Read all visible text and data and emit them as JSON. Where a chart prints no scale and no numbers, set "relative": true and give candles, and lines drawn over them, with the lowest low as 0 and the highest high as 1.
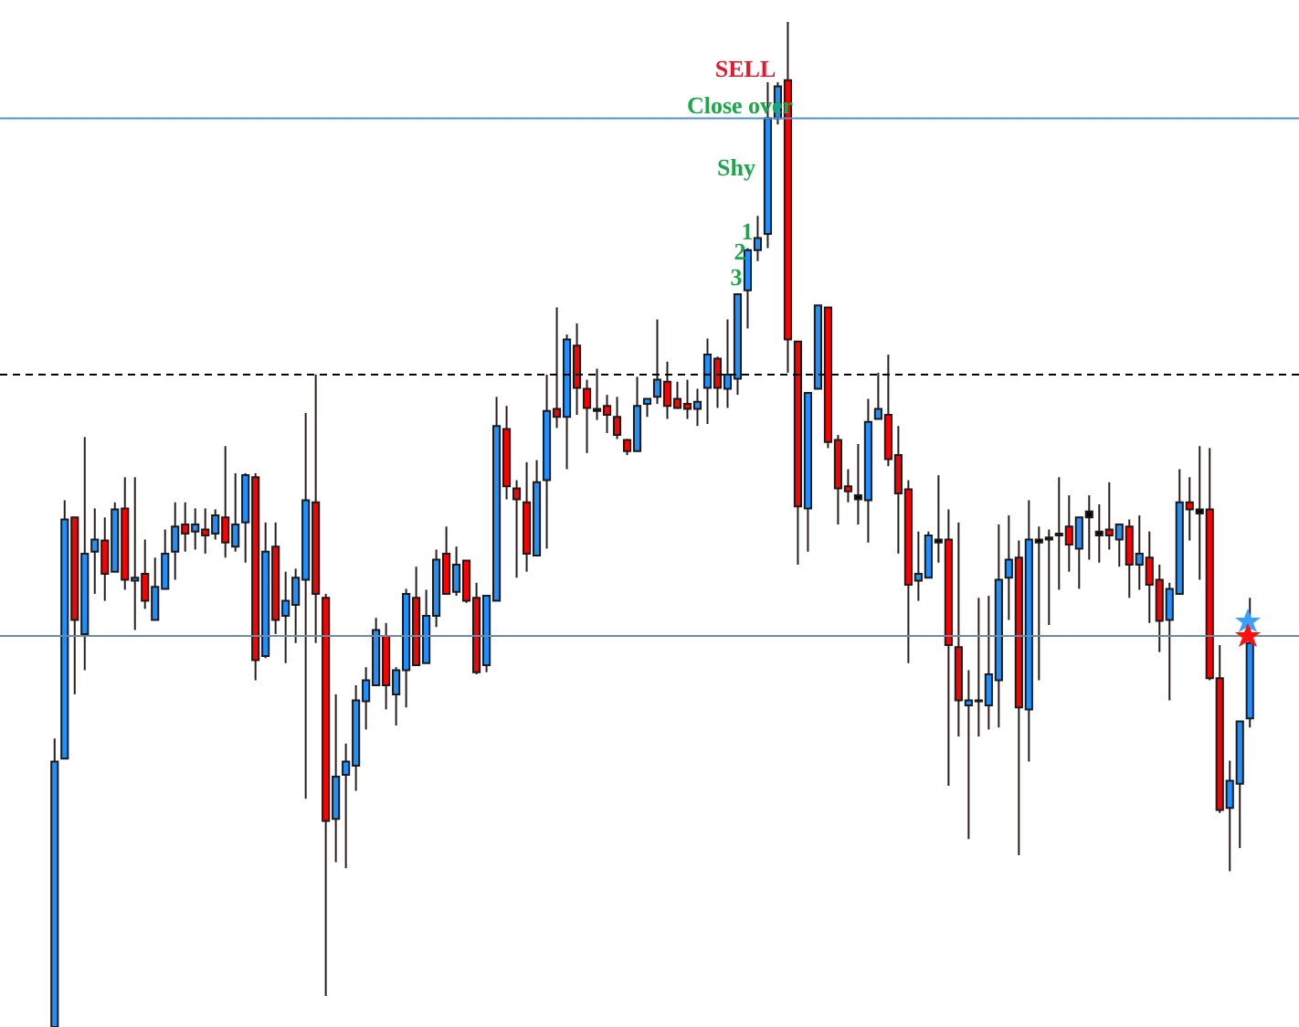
{
  "chart_data": {
    "type": "candlestick",
    "relative": true,
    "categories": [
      null,
      null,
      null,
      null,
      null,
      null,
      null,
      null,
      null,
      null,
      null,
      null,
      null,
      null,
      null,
      null,
      null,
      null,
      null,
      null,
      null,
      null,
      null,
      null,
      null,
      null,
      null,
      null,
      null,
      null,
      null,
      null,
      null,
      null,
      null,
      null,
      null,
      null,
      null,
      null,
      null,
      null,
      null,
      null,
      null,
      null,
      null,
      null,
      null,
      null,
      null,
      null,
      null,
      null,
      null,
      null,
      null,
      null,
      null,
      null,
      null,
      null,
      null,
      null,
      null,
      null,
      null,
      null,
      null,
      null,
      null,
      null,
      null,
      null,
      null,
      null,
      null,
      null,
      null,
      null,
      null,
      null,
      null,
      null,
      null,
      null,
      null,
      null,
      null,
      null,
      null,
      null,
      null,
      null,
      null,
      null,
      null,
      null,
      null,
      null,
      null,
      null,
      null,
      null,
      null,
      null,
      null,
      null,
      null,
      null,
      null,
      null,
      null,
      null,
      null,
      null,
      null,
      null,
      null,
      null
    ],
    "ohlc": [
      [
        0,
        0.287,
        0,
        0.264
      ],
      [
        0.267,
        0.524,
        0.267,
        0.505
      ],
      [
        0.507,
        0.507,
        0.331,
        0.405
      ],
      [
        0.391,
        0.587,
        0.355,
        0.471
      ],
      [
        0.473,
        0.516,
        0.431,
        0.485
      ],
      [
        0.484,
        0.507,
        0.424,
        0.451
      ],
      [
        0.453,
        0.522,
        0.453,
        0.515
      ],
      [
        0.516,
        0.547,
        0.435,
        0.445
      ],
      [
        0.444,
        0.547,
        0.395,
        0.447
      ],
      [
        0.451,
        0.485,
        0.416,
        0.424
      ],
      [
        0.405,
        0.467,
        0.405,
        0.438
      ],
      [
        0.436,
        0.495,
        0.436,
        0.471
      ],
      [
        0.473,
        0.522,
        0.445,
        0.498
      ],
      [
        0.5,
        0.522,
        0.473,
        0.491
      ],
      [
        0.493,
        0.516,
        0.475,
        0.5
      ],
      [
        0.495,
        0.516,
        0.471,
        0.489
      ],
      [
        0.491,
        0.515,
        0.485,
        0.509
      ],
      [
        0.507,
        0.578,
        0.467,
        0.482
      ],
      [
        0.478,
        0.551,
        0.473,
        0.5
      ],
      [
        0.502,
        0.551,
        0.462,
        0.549
      ],
      [
        0.547,
        0.551,
        0.345,
        0.365
      ],
      [
        0.369,
        0.502,
        0.367,
        0.473
      ],
      [
        0.478,
        0.502,
        0.391,
        0.405
      ],
      [
        0.409,
        0.453,
        0.362,
        0.424
      ],
      [
        0.42,
        0.456,
        0.382,
        0.447
      ],
      [
        0.445,
        0.611,
        0.227,
        0.524
      ],
      [
        0.522,
        0.649,
        0.382,
        0.431
      ],
      [
        0.427,
        0.431,
        0.031,
        0.205
      ],
      [
        0.207,
        0.331,
        0.164,
        0.249
      ],
      [
        0.251,
        0.282,
        0.158,
        0.264
      ],
      [
        0.26,
        0.34,
        0.235,
        0.325
      ],
      [
        0.324,
        0.358,
        0.296,
        0.345
      ],
      [
        0.34,
        0.407,
        0.34,
        0.395
      ],
      [
        0.389,
        0.402,
        0.316,
        0.34
      ],
      [
        0.331,
        0.358,
        0.3,
        0.355
      ],
      [
        0.355,
        0.436,
        0.318,
        0.431
      ],
      [
        0.427,
        0.458,
        0.36,
        0.36
      ],
      [
        0.362,
        0.435,
        0.362,
        0.409
      ],
      [
        0.409,
        0.475,
        0.398,
        0.465
      ],
      [
        0.471,
        0.498,
        0.431,
        0.431
      ],
      [
        0.433,
        0.478,
        0.429,
        0.46
      ],
      [
        0.464,
        0.464,
        0.422,
        0.424
      ],
      [
        0.427,
        0.442,
        0.351,
        0.353
      ],
      [
        0.36,
        0.429,
        0.353,
        0.429
      ],
      [
        0.424,
        0.627,
        0.424,
        0.598
      ],
      [
        0.595,
        0.618,
        0.525,
        0.538
      ],
      [
        0.536,
        0.544,
        0.447,
        0.525
      ],
      [
        0.522,
        0.562,
        0.453,
        0.471
      ],
      [
        0.469,
        0.564,
        0.469,
        0.542
      ],
      [
        0.544,
        0.649,
        0.476,
        0.613
      ],
      [
        0.615,
        0.716,
        0.596,
        0.607
      ],
      [
        0.607,
        0.689,
        0.555,
        0.684
      ],
      [
        0.678,
        0.7,
        0.609,
        0.636
      ],
      [
        0.635,
        0.644,
        0.571,
        0.616
      ],
      [
        0.615,
        0.655,
        0.604,
        0.613
      ],
      [
        0.618,
        0.629,
        0.591,
        0.609
      ],
      [
        0.607,
        0.627,
        0.585,
        0.589
      ],
      [
        0.584,
        0.585,
        0.569,
        0.573
      ],
      [
        0.573,
        0.647,
        0.573,
        0.618
      ],
      [
        0.62,
        0.625,
        0.607,
        0.625
      ],
      [
        0.627,
        0.704,
        0.62,
        0.644
      ],
      [
        0.642,
        0.662,
        0.605,
        0.618
      ],
      [
        0.625,
        0.642,
        0.615,
        0.616
      ],
      [
        0.62,
        0.644,
        0.605,
        0.615
      ],
      [
        0.615,
        0.635,
        0.598,
        0.622
      ],
      [
        0.636,
        0.685,
        0.6,
        0.669
      ],
      [
        0.665,
        0.667,
        0.616,
        0.636
      ],
      [
        0.635,
        0.704,
        0.616,
        0.649
      ],
      [
        0.645,
        0.729,
        0.629,
        0.729
      ],
      [
        0.733,
        0.775,
        0.695,
        0.773
      ],
      [
        0.773,
        0.807,
        0.762,
        0.785
      ],
      [
        0.789,
        0.94,
        0.775,
        0.904
      ],
      [
        0.904,
        0.94,
        0.898,
        0.936
      ],
      [
        0.942,
        1,
        0.651,
        0.684
      ],
      [
        0.682,
        0.682,
        0.46,
        0.518
      ],
      [
        0.516,
        0.631,
        0.473,
        0.631
      ],
      [
        0.635,
        0.718,
        0.635,
        0.718
      ],
      [
        0.716,
        0.716,
        0.576,
        0.582
      ],
      [
        0.584,
        0.589,
        0.5,
        0.536
      ],
      [
        0.538,
        0.555,
        0.522,
        0.533
      ],
      [
        0.529,
        0.58,
        0.5,
        0.525
      ],
      [
        0.524,
        0.625,
        0.482,
        0.602
      ],
      [
        0.605,
        0.651,
        0.605,
        0.615
      ],
      [
        0.609,
        0.669,
        0.558,
        0.565
      ],
      [
        0.569,
        0.598,
        0.471,
        0.531
      ],
      [
        0.535,
        0.544,
        0.362,
        0.44
      ],
      [
        0.444,
        0.493,
        0.424,
        0.451
      ],
      [
        0.447,
        0.493,
        0.447,
        0.489
      ],
      [
        0.485,
        0.549,
        0.462,
        0.482
      ],
      [
        0.485,
        0.515,
        0.24,
        0.38
      ],
      [
        0.378,
        0.502,
        0.289,
        0.325
      ],
      [
        0.32,
        0.355,
        0.187,
        0.325
      ],
      [
        0.325,
        0.427,
        0.289,
        0.324
      ],
      [
        0.32,
        0.429,
        0.296,
        0.351
      ],
      [
        0.345,
        0.5,
        0.298,
        0.445
      ],
      [
        0.447,
        0.509,
        0.405,
        0.465
      ],
      [
        0.467,
        0.484,
        0.171,
        0.318
      ],
      [
        0.316,
        0.524,
        0.264,
        0.485
      ],
      [
        0.485,
        0.498,
        0.345,
        0.482
      ],
      [
        0.487,
        0.495,
        0.4,
        0.485
      ],
      [
        0.491,
        0.547,
        0.435,
        0.489
      ],
      [
        0.498,
        0.529,
        0.453,
        0.48
      ],
      [
        0.476,
        0.507,
        0.436,
        0.507
      ],
      [
        0.513,
        0.529,
        0.465,
        0.507
      ],
      [
        0.493,
        0.52,
        0.462,
        0.489
      ],
      [
        0.495,
        0.542,
        0.475,
        0.489
      ],
      [
        0.485,
        0.5,
        0.458,
        0.5
      ],
      [
        0.498,
        0.505,
        0.427,
        0.46
      ],
      [
        0.46,
        0.509,
        0.435,
        0.471
      ],
      [
        0.467,
        0.493,
        0.402,
        0.44
      ],
      [
        0.445,
        0.46,
        0.373,
        0.404
      ],
      [
        0.405,
        0.442,
        0.325,
        0.436
      ],
      [
        0.431,
        0.555,
        0.431,
        0.522
      ],
      [
        0.522,
        0.547,
        0.484,
        0.515
      ],
      [
        0.515,
        0.578,
        0.445,
        0.511
      ],
      [
        0.515,
        0.576,
        0.345,
        0.347
      ],
      [
        0.347,
        0.38,
        0.213,
        0.216
      ],
      [
        0.218,
        0.265,
        0.155,
        0.245
      ],
      [
        0.242,
        0.304,
        0.178,
        0.304
      ],
      [
        0.307,
        0.427,
        0.298,
        0.382
      ]
    ],
    "colors": [
      "#1e90ff",
      "#1e90ff",
      "#ff0000",
      "#1e90ff",
      "#1e90ff",
      "#ff0000",
      "#1e90ff",
      "#ff0000",
      "#1e90ff",
      "#ff0000",
      "#1e90ff",
      "#1e90ff",
      "#1e90ff",
      "#ff0000",
      "#1e90ff",
      "#ff0000",
      "#1e90ff",
      "#ff0000",
      "#1e90ff",
      "#1e90ff",
      "#ff0000",
      "#1e90ff",
      "#ff0000",
      "#1e90ff",
      "#1e90ff",
      "#1e90ff",
      "#ff0000",
      "#ff0000",
      "#1e90ff",
      "#1e90ff",
      "#1e90ff",
      "#1e90ff",
      "#1e90ff",
      "#ff0000",
      "#1e90ff",
      "#1e90ff",
      "#ff0000",
      "#1e90ff",
      "#1e90ff",
      "#ff0000",
      "#1e90ff",
      "#ff0000",
      "#ff0000",
      "#1e90ff",
      "#1e90ff",
      "#ff0000",
      "#ff0000",
      "#ff0000",
      "#1e90ff",
      "#1e90ff",
      "#ff0000",
      "#1e90ff",
      "#ff0000",
      "#ff0000",
      "#000000",
      "#ff0000",
      "#ff0000",
      "#ff0000",
      "#1e90ff",
      "#1e90ff",
      "#1e90ff",
      "#ff0000",
      "#ff0000",
      "#ff0000",
      "#1e90ff",
      "#1e90ff",
      "#ff0000",
      "#1e90ff",
      "#1e90ff",
      "#1e90ff",
      "#1e90ff",
      "#1e90ff",
      "#1e90ff",
      "#ff0000",
      "#ff0000",
      "#1e90ff",
      "#1e90ff",
      "#ff0000",
      "#ff0000",
      "#ff0000",
      "#000000",
      "#1e90ff",
      "#1e90ff",
      "#ff0000",
      "#ff0000",
      "#ff0000",
      "#1e90ff",
      "#1e90ff",
      "#000000",
      "#ff0000",
      "#ff0000",
      "#1e90ff",
      "#000000",
      "#1e90ff",
      "#1e90ff",
      "#1e90ff",
      "#ff0000",
      "#1e90ff",
      "#000000",
      "#000000",
      "#000000",
      "#ff0000",
      "#1e90ff",
      "#000000",
      "#000000",
      "#ff0000",
      "#1e90ff",
      "#ff0000",
      "#1e90ff",
      "#ff0000",
      "#ff0000",
      "#1e90ff",
      "#1e90ff",
      "#ff0000",
      "#000000",
      "#ff0000",
      "#ff0000",
      "#1e90ff",
      "#1e90ff",
      "#1e90ff"
    ],
    "ref_lines": [
      {
        "axis": "y",
        "value": 0.649,
        "color": "#000000",
        "line_style": "dashed"
      },
      {
        "axis": "y",
        "value": 0.389,
        "color": "#6f8ba3",
        "line_style": "solid"
      },
      {
        "axis": "y",
        "value": 0.904,
        "label": "Close over",
        "color": "#5b8fc7",
        "line_style": "solid"
      }
    ],
    "annotations": [
      "SELL",
      "Shy",
      "1",
      "2",
      "3"
    ]
  }
}
